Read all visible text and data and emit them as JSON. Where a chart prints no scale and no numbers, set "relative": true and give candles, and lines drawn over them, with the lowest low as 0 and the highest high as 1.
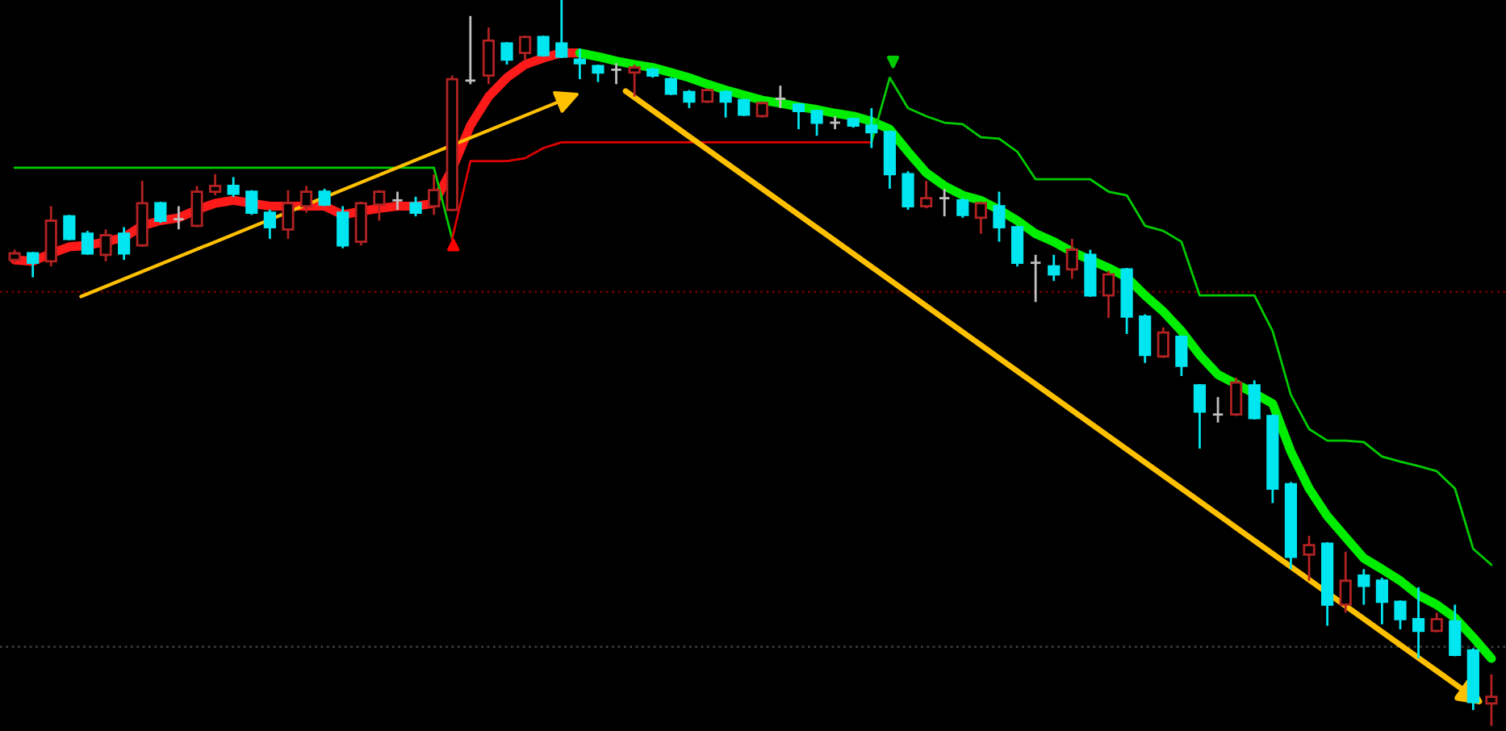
{
  "chart_data": {
    "type": "candlestick",
    "relative": true,
    "categories": [
      null,
      null,
      null,
      null,
      null,
      null,
      null,
      null,
      null,
      null,
      null,
      null,
      null,
      null,
      null,
      null,
      null,
      null,
      null,
      null,
      null,
      null,
      null,
      null,
      null,
      null,
      null,
      null,
      null,
      null,
      null,
      null,
      null,
      null,
      null,
      null,
      null,
      null,
      null,
      null,
      null,
      null,
      null,
      null,
      null,
      null,
      null,
      null,
      null,
      null,
      null,
      null,
      null,
      null,
      null,
      null,
      null,
      null,
      null,
      null,
      null,
      null,
      null,
      null,
      null,
      null,
      null,
      null,
      null,
      null,
      null,
      null,
      null,
      null,
      null,
      null,
      null,
      null,
      null,
      null,
      null,
      null
    ],
    "ohlc": [
      [
        0.642,
        0.656,
        0.638,
        0.651
      ],
      [
        0.651,
        0.653,
        0.618,
        0.638
      ],
      [
        0.64,
        0.716,
        0.633,
        0.696
      ],
      [
        0.702,
        0.704,
        0.669,
        0.671
      ],
      [
        0.678,
        0.682,
        0.649,
        0.651
      ],
      [
        0.649,
        0.684,
        0.64,
        0.676
      ],
      [
        0.678,
        0.687,
        0.642,
        0.651
      ],
      [
        0.662,
        0.751,
        0.66,
        0.72
      ],
      [
        0.72,
        0.722,
        0.693,
        0.696
      ],
      [
        0.698,
        0.716,
        0.684,
        0.698
      ],
      [
        0.689,
        0.744,
        0.687,
        0.736
      ],
      [
        0.736,
        0.76,
        0.731,
        0.744
      ],
      [
        0.744,
        0.756,
        0.729,
        0.733
      ],
      [
        0.736,
        0.738,
        0.704,
        0.707
      ],
      [
        0.707,
        0.711,
        0.671,
        0.687
      ],
      [
        0.684,
        0.738,
        0.671,
        0.72
      ],
      [
        0.716,
        0.744,
        0.707,
        0.736
      ],
      [
        0.736,
        0.74,
        0.716,
        0.718
      ],
      [
        0.707,
        0.716,
        0.658,
        0.662
      ],
      [
        0.667,
        0.722,
        0.662,
        0.72
      ],
      [
        0.718,
        0.738,
        0.696,
        0.736
      ],
      [
        0.724,
        0.736,
        0.711,
        0.724
      ],
      [
        0.72,
        0.729,
        0.702,
        0.707
      ],
      [
        0.716,
        0.76,
        0.704,
        0.738
      ],
      [
        0.711,
        0.896,
        0.709,
        0.891
      ],
      [
        0.889,
        0.978,
        0.884,
        0.889
      ],
      [
        0.896,
        0.962,
        0.884,
        0.944
      ],
      [
        0.94,
        0.942,
        0.911,
        0.918
      ],
      [
        0.927,
        0.951,
        0.916,
        0.949
      ],
      [
        0.949,
        0.951,
        0.922,
        0.924
      ],
      [
        0.94,
        1.0,
        0.92,
        0.922
      ],
      [
        0.918,
        0.933,
        0.891,
        0.913
      ],
      [
        0.909,
        0.911,
        0.887,
        0.9
      ],
      [
        0.904,
        0.913,
        0.884,
        0.904
      ],
      [
        0.9,
        0.911,
        0.867,
        0.907
      ],
      [
        0.904,
        0.907,
        0.893,
        0.896
      ],
      [
        0.891,
        0.893,
        0.869,
        0.871
      ],
      [
        0.873,
        0.876,
        0.851,
        0.86
      ],
      [
        0.86,
        0.878,
        0.858,
        0.876
      ],
      [
        0.873,
        0.876,
        0.838,
        0.86
      ],
      [
        0.862,
        0.864,
        0.84,
        0.842
      ],
      [
        0.84,
        0.86,
        0.838,
        0.858
      ],
      [
        0.864,
        0.882,
        0.851,
        0.864
      ],
      [
        0.856,
        0.858,
        0.822,
        0.847
      ],
      [
        0.847,
        0.849,
        0.813,
        0.831
      ],
      [
        0.831,
        0.84,
        0.822,
        0.831
      ],
      [
        0.836,
        0.838,
        0.824,
        0.827
      ],
      [
        0.827,
        0.851,
        0.796,
        0.818
      ],
      [
        0.818,
        0.82,
        0.74,
        0.76
      ],
      [
        0.76,
        0.764,
        0.711,
        0.716
      ],
      [
        0.716,
        0.751,
        0.713,
        0.727
      ],
      [
        0.727,
        0.74,
        0.702,
        0.727
      ],
      [
        0.724,
        0.727,
        0.7,
        0.704
      ],
      [
        0.7,
        0.722,
        0.678,
        0.72
      ],
      [
        0.716,
        0.736,
        0.667,
        0.687
      ],
      [
        0.687,
        0.689,
        0.633,
        0.638
      ],
      [
        0.638,
        0.649,
        0.584,
        0.638
      ],
      [
        0.633,
        0.649,
        0.613,
        0.622
      ],
      [
        0.629,
        0.671,
        0.616,
        0.656
      ],
      [
        0.649,
        0.656,
        0.591,
        0.593
      ],
      [
        0.593,
        0.627,
        0.562,
        0.622
      ],
      [
        0.629,
        0.631,
        0.54,
        0.564
      ],
      [
        0.564,
        0.567,
        0.5,
        0.511
      ],
      [
        0.509,
        0.549,
        0.507,
        0.542
      ],
      [
        0.536,
        0.538,
        0.482,
        0.496
      ],
      [
        0.469,
        0.471,
        0.382,
        0.433
      ],
      [
        0.429,
        0.453,
        0.418,
        0.429
      ],
      [
        0.429,
        0.48,
        0.427,
        0.473
      ],
      [
        0.469,
        0.476,
        0.422,
        0.424
      ],
      [
        0.427,
        0.429,
        0.307,
        0.327
      ],
      [
        0.333,
        0.336,
        0.216,
        0.233
      ],
      [
        0.236,
        0.262,
        0.2,
        0.249
      ],
      [
        0.251,
        0.253,
        0.138,
        0.167
      ],
      [
        0.167,
        0.24,
        0.156,
        0.2
      ],
      [
        0.207,
        0.216,
        0.167,
        0.193
      ],
      [
        0.2,
        0.204,
        0.14,
        0.171
      ],
      [
        0.171,
        0.173,
        0.133,
        0.147
      ],
      [
        0.147,
        0.191,
        0.093,
        0.131
      ],
      [
        0.131,
        0.156,
        0.129,
        0.147
      ],
      [
        0.144,
        0.167,
        0.096,
        0.098
      ],
      [
        0.104,
        0.107,
        0.022,
        0.033
      ],
      [
        0.031,
        0.071,
        0.0,
        0.04
      ]
    ],
    "colors": [
      "#b22222",
      "#00e6f0",
      "#b22222",
      "#00e6f0",
      "#00e6f0",
      "#b22222",
      "#00e6f0",
      "#b22222",
      "#00e6f0",
      "#c0c0c0",
      "#b22222",
      "#b22222",
      "#00e6f0",
      "#00e6f0",
      "#00e6f0",
      "#b22222",
      "#b22222",
      "#00e6f0",
      "#00e6f0",
      "#b22222",
      "#b22222",
      "#c0c0c0",
      "#00e6f0",
      "#b22222",
      "#b22222",
      "#c0c0c0",
      "#b22222",
      "#00e6f0",
      "#b22222",
      "#00e6f0",
      "#00e6f0",
      "#00e6f0",
      "#00e6f0",
      "#c0c0c0",
      "#b22222",
      "#00e6f0",
      "#00e6f0",
      "#00e6f0",
      "#b22222",
      "#00e6f0",
      "#00e6f0",
      "#b22222",
      "#c0c0c0",
      "#00e6f0",
      "#00e6f0",
      "#c0c0c0",
      "#00e6f0",
      "#00e6f0",
      "#00e6f0",
      "#00e6f0",
      "#b22222",
      "#c0c0c0",
      "#00e6f0",
      "#b22222",
      "#00e6f0",
      "#00e6f0",
      "#c0c0c0",
      "#00e6f0",
      "#b22222",
      "#00e6f0",
      "#b22222",
      "#00e6f0",
      "#00e6f0",
      "#b22222",
      "#00e6f0",
      "#00e6f0",
      "#c0c0c0",
      "#b22222",
      "#00e6f0",
      "#00e6f0",
      "#00e6f0",
      "#b22222",
      "#00e6f0",
      "#b22222",
      "#00e6f0",
      "#00e6f0",
      "#00e6f0",
      "#00e6f0",
      "#b22222",
      "#00e6f0",
      "#00e6f0",
      "#b22222"
    ],
    "series": [
      {
        "type": "line",
        "color": "#ff1a1a",
        "values": [
          0.642,
          0.64,
          0.651,
          0.66,
          0.662,
          0.667,
          0.673,
          0.689,
          0.696,
          0.7,
          0.711,
          0.72,
          0.724,
          0.72,
          0.716,
          0.716,
          0.716,
          0.716,
          0.704,
          0.709,
          0.713,
          0.716,
          0.716,
          0.72,
          0.767,
          0.827,
          0.867,
          0.893,
          0.911,
          0.92,
          0.927,
          0.927,
          null,
          null,
          null,
          null,
          null,
          null,
          null,
          null,
          null,
          null,
          null,
          null,
          null,
          null,
          null,
          null,
          null,
          null,
          null,
          null,
          null,
          null,
          null,
          null,
          null,
          null,
          null,
          null,
          null,
          null,
          null,
          null,
          null,
          null,
          null,
          null,
          null,
          null,
          null,
          null,
          null,
          null,
          null,
          null,
          null,
          null,
          null,
          null,
          null,
          null
        ]
      },
      {
        "type": "line",
        "color": "#00ee00",
        "values": [
          null,
          null,
          null,
          null,
          null,
          null,
          null,
          null,
          null,
          null,
          null,
          null,
          null,
          null,
          null,
          null,
          null,
          null,
          null,
          null,
          null,
          null,
          null,
          null,
          null,
          null,
          null,
          null,
          null,
          null,
          null,
          0.927,
          0.922,
          0.916,
          0.911,
          0.907,
          0.9,
          0.893,
          0.884,
          0.876,
          0.869,
          0.862,
          0.858,
          0.853,
          0.849,
          0.844,
          0.84,
          0.833,
          0.822,
          0.791,
          0.762,
          0.744,
          0.731,
          0.724,
          0.711,
          0.696,
          0.678,
          0.667,
          0.653,
          0.642,
          0.631,
          0.618,
          0.593,
          0.571,
          0.544,
          0.511,
          0.484,
          0.471,
          0.458,
          0.444,
          0.378,
          0.327,
          0.289,
          0.26,
          0.231,
          0.216,
          0.2,
          0.18,
          0.167,
          0.149,
          0.122,
          0.093
        ]
      },
      {
        "type": "line",
        "color": "#00cc00",
        "values": [
          0.769,
          0.769,
          0.769,
          0.769,
          0.769,
          0.769,
          0.769,
          0.769,
          0.769,
          0.769,
          0.769,
          0.769,
          0.769,
          0.769,
          0.769,
          0.769,
          0.769,
          0.769,
          0.769,
          0.769,
          0.769,
          0.769,
          0.769,
          0.769,
          0.671,
          null,
          null,
          null,
          null,
          null,
          null,
          null,
          null,
          null,
          null,
          null,
          null,
          null,
          null,
          null,
          null,
          null,
          null,
          null,
          null,
          null,
          null,
          null,
          null,
          null,
          null,
          null,
          null,
          null,
          null,
          null,
          null,
          null,
          null,
          null,
          null,
          null,
          null,
          null,
          null,
          null,
          null,
          null,
          null,
          null,
          null,
          null,
          null,
          null,
          null,
          null,
          null,
          null,
          null,
          null,
          null,
          null
        ]
      },
      {
        "type": "line",
        "color": "#e00000",
        "values": [
          null,
          null,
          null,
          null,
          null,
          null,
          null,
          null,
          null,
          null,
          null,
          null,
          null,
          null,
          null,
          null,
          null,
          null,
          null,
          null,
          null,
          null,
          null,
          null,
          0.671,
          0.778,
          0.778,
          0.778,
          0.782,
          0.796,
          0.804,
          0.804,
          0.804,
          0.804,
          0.804,
          0.804,
          0.804,
          0.804,
          0.804,
          0.804,
          0.804,
          0.804,
          0.804,
          0.804,
          0.804,
          0.804,
          0.804,
          0.804,
          null,
          null,
          null,
          null,
          null,
          null,
          null,
          null,
          null,
          null,
          null,
          null,
          null,
          null,
          null,
          null,
          null,
          null,
          null,
          null,
          null,
          null,
          null,
          null,
          null,
          null,
          null,
          null,
          null,
          null,
          null,
          null,
          null,
          null
        ]
      },
      {
        "type": "line",
        "color": "#00cc00",
        "values": [
          null,
          null,
          null,
          null,
          null,
          null,
          null,
          null,
          null,
          null,
          null,
          null,
          null,
          null,
          null,
          null,
          null,
          null,
          null,
          null,
          null,
          null,
          null,
          null,
          null,
          null,
          null,
          null,
          null,
          null,
          null,
          null,
          null,
          null,
          null,
          null,
          null,
          null,
          null,
          null,
          null,
          null,
          null,
          null,
          null,
          null,
          null,
          0.804,
          0.893,
          0.851,
          0.84,
          0.831,
          0.829,
          0.811,
          0.809,
          0.791,
          0.753,
          0.753,
          0.753,
          0.753,
          0.736,
          0.731,
          0.689,
          0.682,
          0.667,
          0.593,
          0.593,
          0.593,
          0.593,
          0.544,
          0.456,
          0.409,
          0.393,
          0.393,
          0.391,
          0.371,
          0.364,
          0.358,
          0.351,
          0.327,
          0.244,
          0.222
        ]
      }
    ],
    "ref_lines": [
      {
        "axis": "y",
        "value": 0.598,
        "color": "#6a0000",
        "line_style": "dotted"
      },
      {
        "axis": "y",
        "value": 0.109,
        "color": "#3a3a3a",
        "line_style": "dotted"
      }
    ]
  }
}
